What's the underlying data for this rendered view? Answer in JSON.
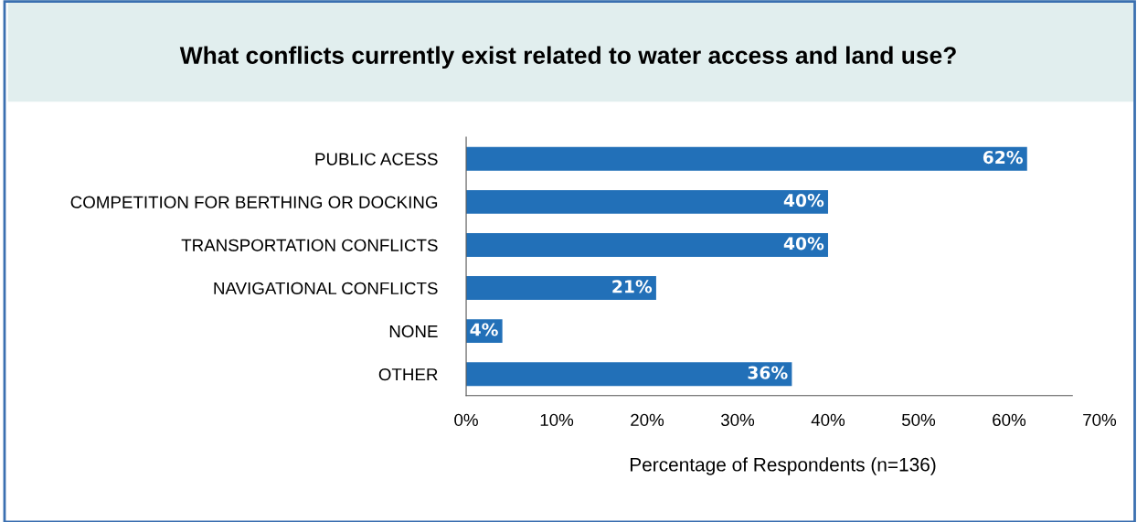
{
  "chart_data": {
    "type": "bar",
    "orientation": "horizontal",
    "title": "What conflicts currently exist related to water access and land use?",
    "xlabel": "Percentage of Respondents (n=136)",
    "categories": [
      "PUBLIC ACESS",
      "COMPETITION FOR BERTHING OR DOCKING",
      "TRANSPORTATION CONFLICTS",
      "NAVIGATIONAL CONFLICTS",
      "NONE",
      "OTHER"
    ],
    "values": [
      62,
      40,
      40,
      21,
      4,
      36
    ],
    "value_labels": [
      "62%",
      "40%",
      "40%",
      "21%",
      "4%",
      "36%"
    ],
    "color": "#2270b8",
    "xlim": [
      0,
      70
    ],
    "xticks": [
      {
        "value": 0,
        "label": "0%"
      },
      {
        "value": 10,
        "label": "10%"
      },
      {
        "value": 20,
        "label": "20%"
      },
      {
        "value": 30,
        "label": "30%"
      },
      {
        "value": 40,
        "label": "40%"
      },
      {
        "value": 50,
        "label": "50%"
      },
      {
        "value": 60,
        "label": "60%"
      },
      {
        "value": 70,
        "label": "70%"
      }
    ],
    "grid": false,
    "legend": false
  }
}
